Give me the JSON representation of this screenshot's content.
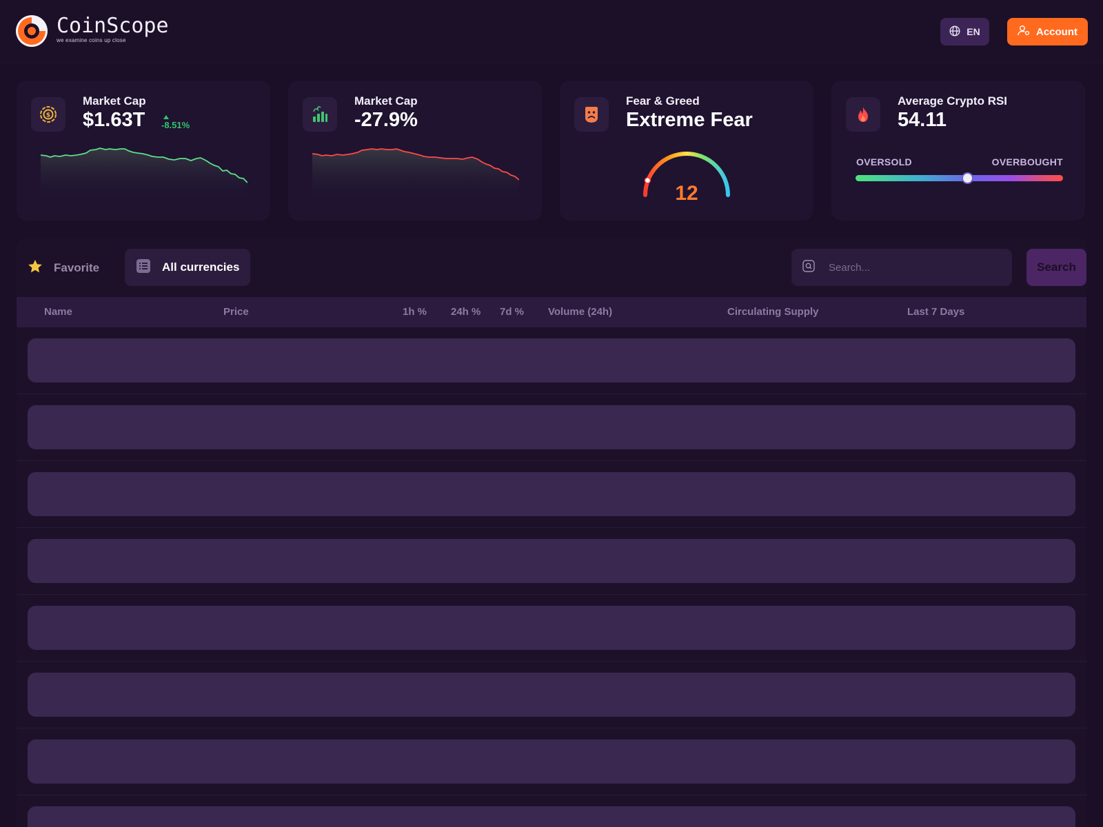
{
  "header": {
    "logo_name": "CoinScope",
    "logo_tagline": "we examine coins up close",
    "language": "EN",
    "account_label": "Account"
  },
  "stats": {
    "market_cap": {
      "title": "Market Cap",
      "value": "$1.63T",
      "change": "-8.51%",
      "line_color": "#5ee08a",
      "icon": "coin-icon"
    },
    "market_cap_change": {
      "title": "Market Cap",
      "value": "-27.9%",
      "line_color": "#ff4a4a",
      "icon": "bar-growth-icon"
    },
    "fear_greed": {
      "title": "Fear & Greed",
      "value": "Extreme Fear",
      "score": "12",
      "score_color": "#ff7a2e",
      "icon": "sad-face-icon"
    },
    "rsi": {
      "title": "Average Crypto RSI",
      "value": "54.11",
      "oversold_label": "OVERSOLD",
      "overbought_label": "OVERBOUGHT",
      "level": 54.11,
      "icon": "flame-icon"
    }
  },
  "tabs": {
    "favorite_label": "Favorite",
    "all_label": "All currencies"
  },
  "search": {
    "placeholder": "Search...",
    "button_label": "Search"
  },
  "table": {
    "columns": [
      "Name",
      "Price",
      "1h %",
      "24h %",
      "7d %",
      "Volume (24h)",
      "Circulating Supply",
      "Last 7 Days"
    ]
  },
  "colors": {
    "accent": "#ff6a1f",
    "background": "#1a0f26",
    "positive": "#33c46b",
    "negative": "#ff4a4a"
  }
}
